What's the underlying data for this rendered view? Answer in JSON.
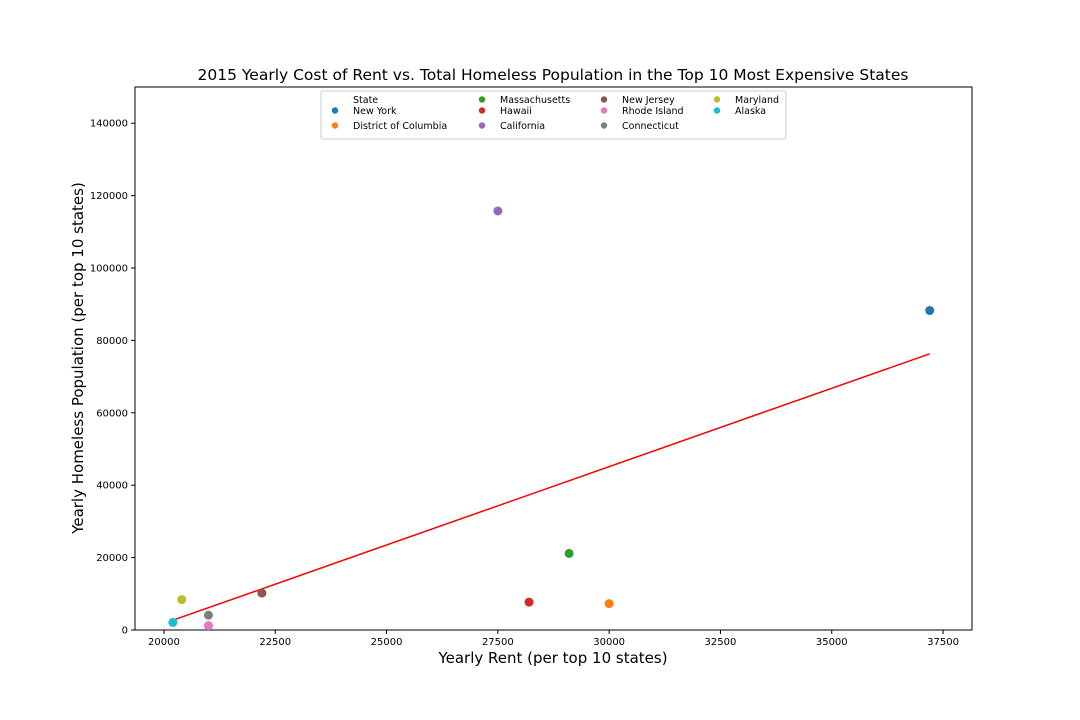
{
  "chart_data": {
    "type": "scatter",
    "title": "2015 Yearly Cost of Rent vs. Total Homeless Population in the Top 10 Most Expensive States",
    "xlabel": "Yearly Rent (per top 10 states)",
    "ylabel": "Yearly Homeless Population (per top 10 states)",
    "xlim": [
      19350,
      38150
    ],
    "ylim": [
      0,
      150000
    ],
    "xticks": [
      20000,
      22500,
      25000,
      27500,
      30000,
      32500,
      35000,
      37500
    ],
    "yticks": [
      0,
      20000,
      40000,
      60000,
      80000,
      100000,
      120000,
      140000
    ],
    "grid": false,
    "legend": {
      "title": "State",
      "placement": "top-center",
      "columns": 4
    },
    "series": [
      {
        "name": "New York",
        "color": "#1f77b4",
        "x": 37200,
        "y": 88250
      },
      {
        "name": "District of Columbia",
        "color": "#ff7f0e",
        "x": 30000,
        "y": 7300
      },
      {
        "name": "Massachusetts",
        "color": "#2ca02c",
        "x": 29100,
        "y": 21150
      },
      {
        "name": "Hawaii",
        "color": "#d62728",
        "x": 28200,
        "y": 7700
      },
      {
        "name": "California",
        "color": "#9467bd",
        "x": 27500,
        "y": 115750
      },
      {
        "name": "New Jersey",
        "color": "#8c564b",
        "x": 22200,
        "y": 10200
      },
      {
        "name": "Rhode Island",
        "color": "#e377c2",
        "x": 21000,
        "y": 1200
      },
      {
        "name": "Connecticut",
        "color": "#7f7f7f",
        "x": 21000,
        "y": 4100
      },
      {
        "name": "Maryland",
        "color": "#bcbd22",
        "x": 20400,
        "y": 8400
      },
      {
        "name": "Alaska",
        "color": "#17becf",
        "x": 20200,
        "y": 2100
      }
    ],
    "regression_line": {
      "color": "#ff0000",
      "points": [
        [
          20200,
          2700
        ],
        [
          37200,
          76300
        ]
      ]
    }
  }
}
